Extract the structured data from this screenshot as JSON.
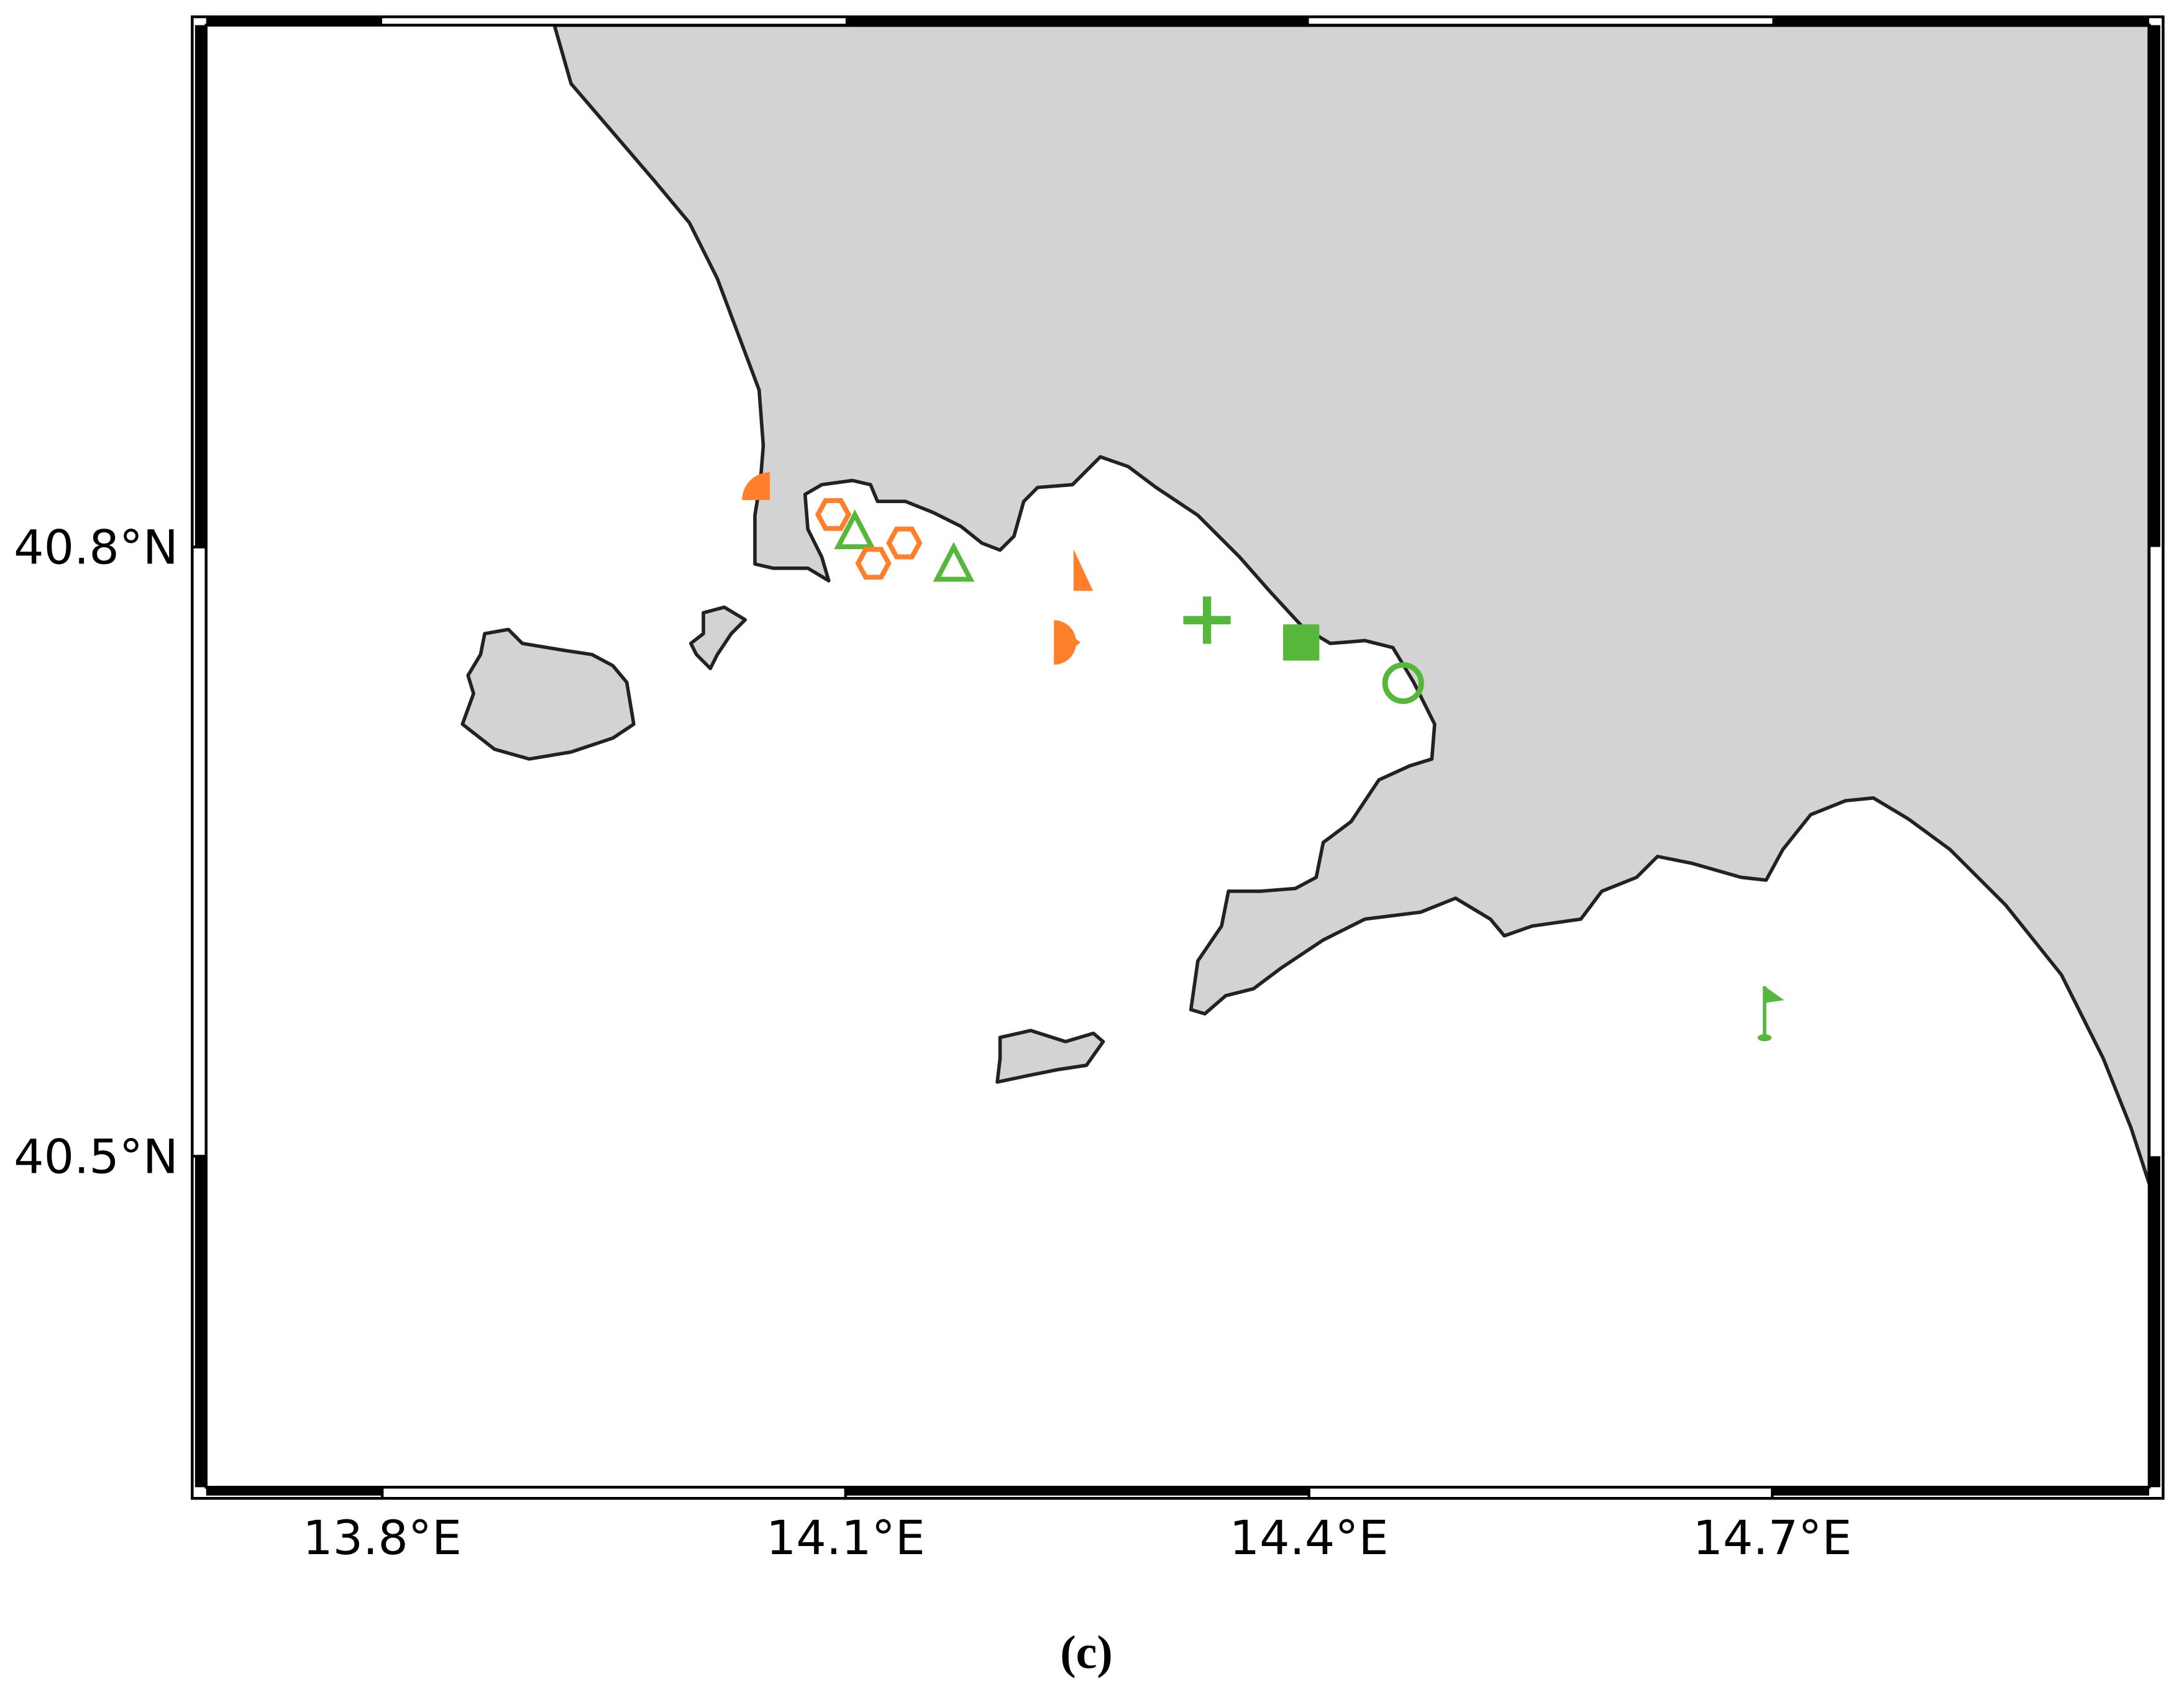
{
  "chart_data": {
    "type": "map",
    "caption": "(c)",
    "xlim": [
      13.686,
      14.944
    ],
    "ylim": [
      40.337,
      41.057
    ],
    "xticks": [
      {
        "value": 13.8,
        "label": "13.8°E"
      },
      {
        "value": 14.1,
        "label": "14.1°E"
      },
      {
        "value": 14.4,
        "label": "14.4°E"
      },
      {
        "value": 14.7,
        "label": "14.7°E"
      }
    ],
    "yticks": [
      {
        "value": 40.8,
        "label": "40.8°N"
      },
      {
        "value": 40.5,
        "label": "40.5°N"
      }
    ],
    "points": [
      {
        "lon": 14.042,
        "lat": 40.83,
        "shape": "quarter-circle",
        "color": "#ff7f2a"
      },
      {
        "lon": 14.092,
        "lat": 40.816,
        "shape": "hexagon",
        "color": "#ff7f2a"
      },
      {
        "lon": 14.106,
        "lat": 40.807,
        "shape": "triangle",
        "color": "#55b83a"
      },
      {
        "lon": 14.118,
        "lat": 40.792,
        "shape": "hexagon",
        "color": "#ff7f2a"
      },
      {
        "lon": 14.138,
        "lat": 40.802,
        "shape": "hexagon",
        "color": "#ff7f2a"
      },
      {
        "lon": 14.17,
        "lat": 40.791,
        "shape": "triangle",
        "color": "#55b83a"
      },
      {
        "lon": 14.253,
        "lat": 40.788,
        "shape": "half-triangle",
        "color": "#ff7f2a"
      },
      {
        "lon": 14.243,
        "lat": 40.753,
        "shape": "half-circle",
        "color": "#ff7f2a"
      },
      {
        "lon": 14.334,
        "lat": 40.764,
        "shape": "cross",
        "color": "#55b83a"
      },
      {
        "lon": 14.395,
        "lat": 40.753,
        "shape": "square",
        "color": "#55b83a"
      },
      {
        "lon": 14.461,
        "lat": 40.733,
        "shape": "circle",
        "color": "#55b83a"
      },
      {
        "lon": 14.695,
        "lat": 40.57,
        "shape": "flag",
        "color": "#55b83a"
      }
    ]
  }
}
